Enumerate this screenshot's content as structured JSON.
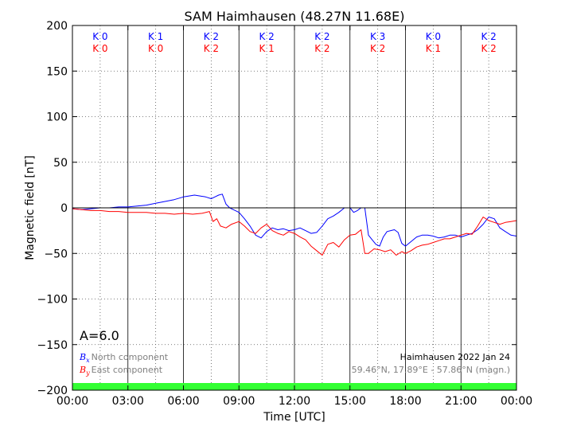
{
  "chart_data": {
    "type": "line",
    "title": "SAM Haimhausen (48.27N 11.68E)",
    "xlabel": "Time [UTC]",
    "ylabel": "Magnetic field [nT]",
    "xlim": [
      0,
      24
    ],
    "ylim": [
      -200,
      200
    ],
    "x_tick_labels": [
      "00:00",
      "03:00",
      "06:00",
      "09:00",
      "12:00",
      "15:00",
      "18:00",
      "21:00",
      "00:00"
    ],
    "y_ticks": [
      -200,
      -150,
      -100,
      -50,
      0,
      50,
      100,
      150,
      200
    ],
    "y_tick_labels": [
      "−200",
      "−150",
      "−100",
      "−50",
      "0",
      "50",
      "100",
      "150",
      "200"
    ],
    "grid": "dotted",
    "colors": {
      "north": "#0000ff",
      "east": "#ff0000",
      "activity_band": "#33ff33",
      "grey_text": "#808080"
    },
    "k_index_rows": [
      {
        "name": "north",
        "labels": [
          "K 0",
          "K 1",
          "K 2",
          "K 2",
          "K 2",
          "K 3",
          "K 0",
          "K 2"
        ]
      },
      {
        "name": "east",
        "labels": [
          "K 0",
          "K 0",
          "K 2",
          "K 1",
          "K 2",
          "K 2",
          "K 1",
          "K 2"
        ]
      }
    ],
    "a_index_label": "A=6.0",
    "legend": [
      {
        "symbol": "B",
        "sub": "x",
        "label": "North component"
      },
      {
        "symbol": "B",
        "sub": "y",
        "label": "East component"
      }
    ],
    "station_label": "Haimhausen 2022 Jan 24",
    "coords_label": "59.46°N, 17.89°E - 57.86°N (magn.)",
    "series": [
      {
        "name": "North component",
        "key": "north",
        "x": [
          0,
          0.5,
          1,
          1.5,
          2,
          2.5,
          3,
          3.5,
          4,
          4.5,
          5,
          5.5,
          6,
          6.3,
          6.6,
          6.9,
          7.2,
          7.5,
          7.7,
          7.9,
          8.1,
          8.3,
          8.5,
          8.7,
          9,
          9.3,
          9.6,
          9.9,
          10.2,
          10.5,
          10.8,
          11.1,
          11.4,
          11.7,
          12,
          12.3,
          12.6,
          12.9,
          13.2,
          13.5,
          13.8,
          14.1,
          14.4,
          14.7,
          15,
          15.2,
          15.4,
          15.6,
          15.8,
          16,
          16.2,
          16.4,
          16.6,
          16.8,
          17,
          17.2,
          17.4,
          17.6,
          17.8,
          18,
          18.3,
          18.6,
          18.9,
          19.2,
          19.5,
          19.8,
          20.1,
          20.4,
          20.7,
          21,
          21.3,
          21.6,
          21.9,
          22.2,
          22.5,
          22.8,
          23.1,
          23.4,
          23.7,
          24
        ],
        "y": [
          -1,
          -2,
          -1,
          0,
          0,
          1,
          1,
          2,
          3,
          5,
          7,
          9,
          12,
          13,
          14,
          13,
          12,
          10,
          12,
          14,
          15,
          4,
          0,
          -2,
          -5,
          -12,
          -20,
          -30,
          -33,
          -26,
          -22,
          -24,
          -23,
          -25,
          -24,
          -22,
          -25,
          -28,
          -27,
          -20,
          -12,
          -9,
          -5,
          0,
          0,
          -5,
          -3,
          0,
          0,
          -30,
          -35,
          -40,
          -42,
          -32,
          -26,
          -25,
          -24,
          -27,
          -39,
          -42,
          -37,
          -32,
          -30,
          -30,
          -31,
          -33,
          -32,
          -30,
          -30,
          -32,
          -30,
          -28,
          -24,
          -18,
          -10,
          -12,
          -22,
          -26,
          -30,
          -31
        ]
      },
      {
        "name": "East component",
        "key": "east",
        "x": [
          0,
          0.5,
          1,
          1.5,
          2,
          2.5,
          3,
          3.5,
          4,
          4.5,
          5,
          5.5,
          6,
          6.5,
          7,
          7.4,
          7.6,
          7.8,
          8,
          8.3,
          8.6,
          9,
          9.3,
          9.6,
          9.9,
          10.2,
          10.5,
          10.8,
          11.1,
          11.4,
          11.7,
          12,
          12.3,
          12.6,
          12.9,
          13.2,
          13.5,
          13.8,
          14.1,
          14.4,
          14.7,
          15,
          15.3,
          15.6,
          15.8,
          16,
          16.3,
          16.6,
          16.9,
          17.2,
          17.5,
          17.8,
          18,
          18.3,
          18.6,
          18.9,
          19.2,
          19.5,
          19.8,
          20.1,
          20.4,
          20.7,
          21,
          21.3,
          21.6,
          21.9,
          22.2,
          22.5,
          22.8,
          23.1,
          23.4,
          23.7,
          24
        ],
        "y": [
          -1,
          -2,
          -3,
          -3,
          -4,
          -4,
          -5,
          -5,
          -5,
          -6,
          -6,
          -7,
          -6,
          -7,
          -6,
          -4,
          -15,
          -12,
          -20,
          -22,
          -18,
          -15,
          -20,
          -26,
          -28,
          -22,
          -18,
          -25,
          -28,
          -30,
          -26,
          -28,
          -32,
          -35,
          -42,
          -47,
          -52,
          -40,
          -38,
          -43,
          -35,
          -30,
          -29,
          -24,
          -50,
          -50,
          -45,
          -46,
          -48,
          -46,
          -52,
          -48,
          -50,
          -47,
          -43,
          -41,
          -40,
          -38,
          -36,
          -34,
          -34,
          -32,
          -30,
          -28,
          -29,
          -20,
          -10,
          -14,
          -16,
          -18,
          -16,
          -15,
          -14
        ]
      }
    ]
  }
}
